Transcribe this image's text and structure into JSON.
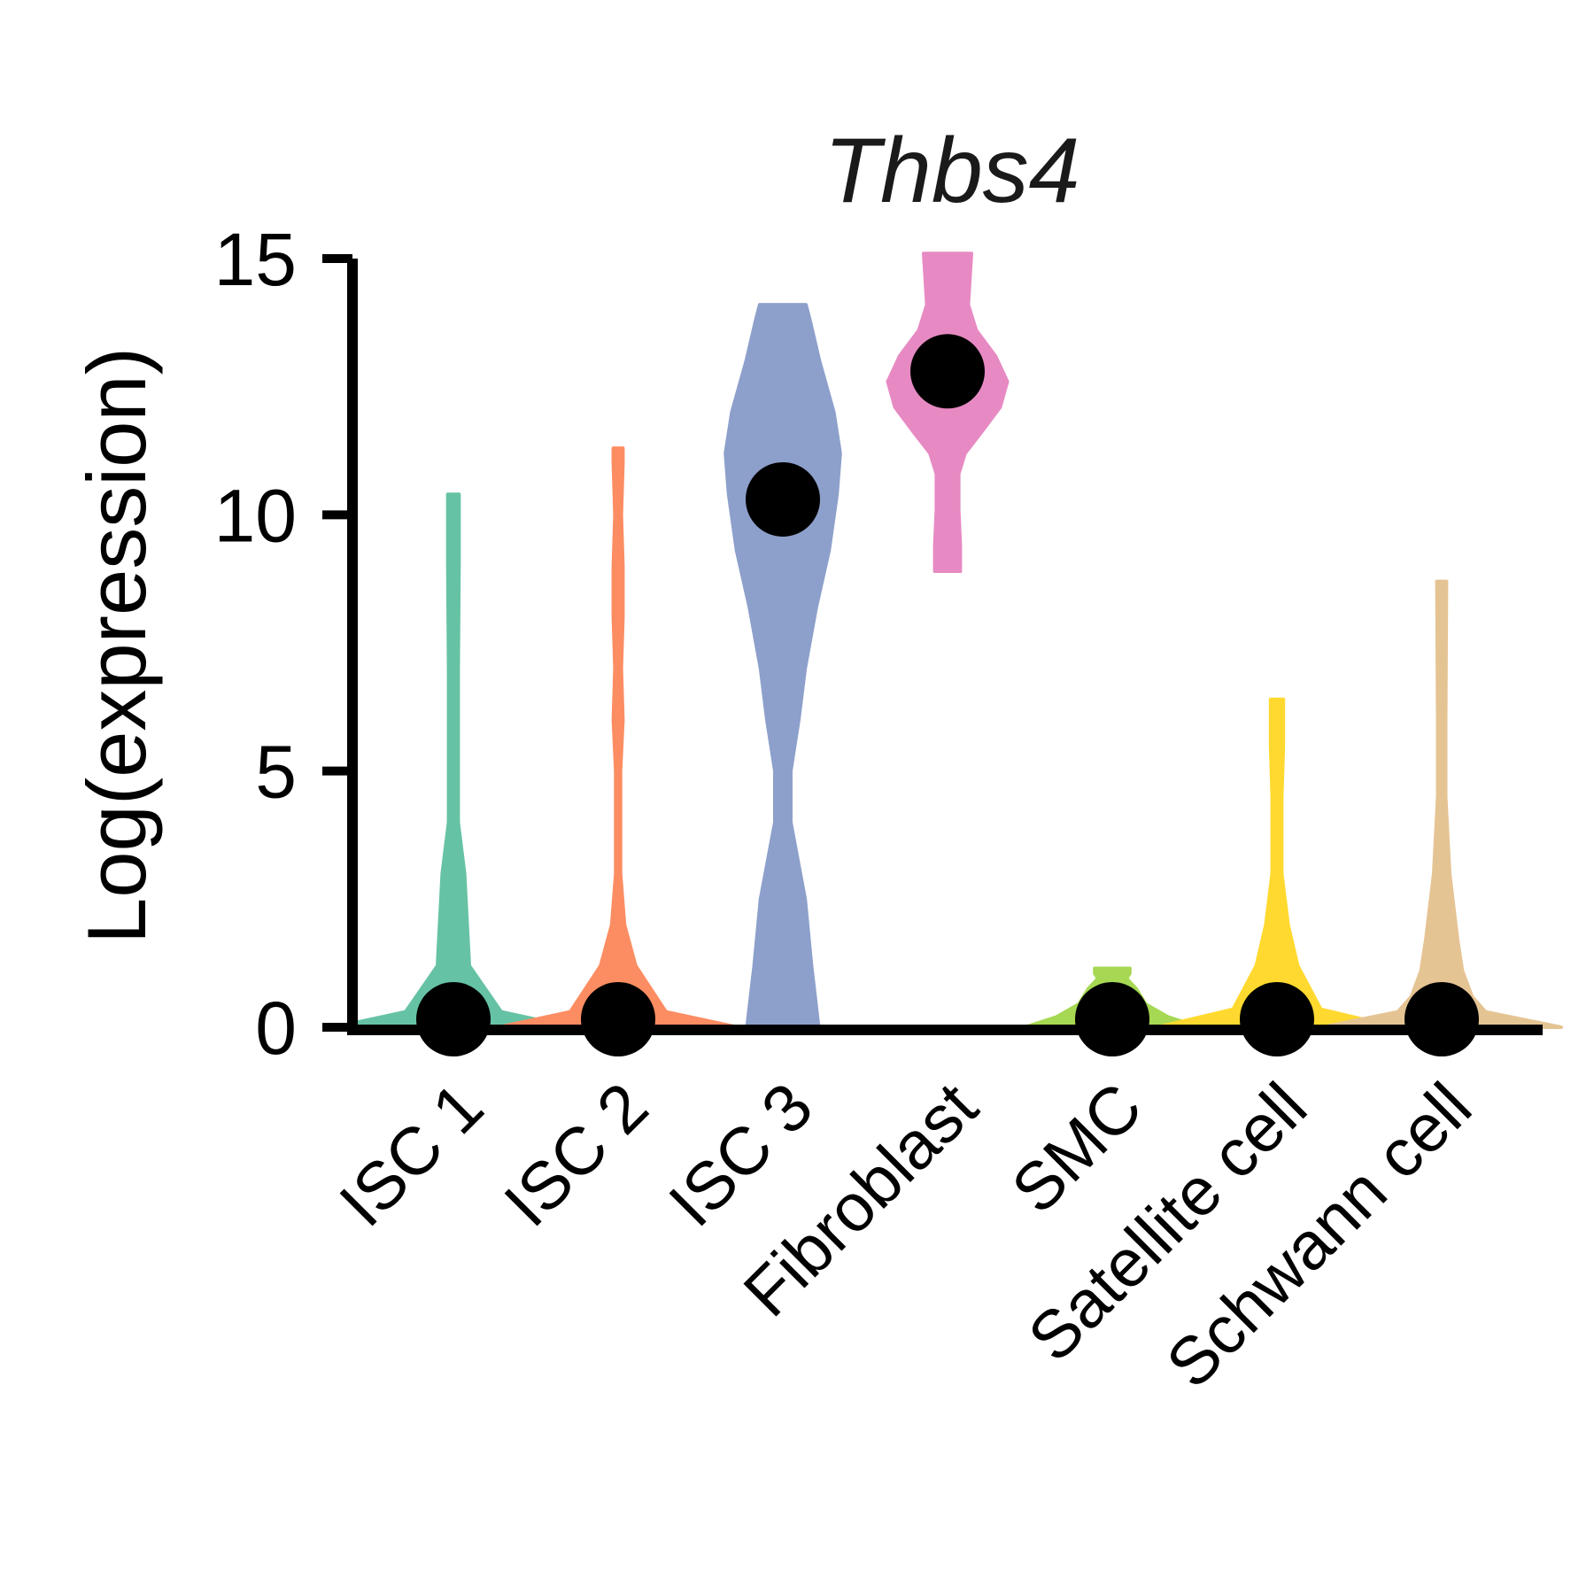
{
  "chart_data": {
    "type": "violin",
    "title": "Thbs4",
    "ylabel": "Log(expression)",
    "xlabel": "",
    "ylim": [
      0,
      15
    ],
    "yticks": [
      0,
      5,
      10,
      15
    ],
    "categories": [
      "ISC 1",
      "ISC 2",
      "ISC 3",
      "Fibroblast",
      "SMC",
      "Satellite cell",
      "Schwann cell"
    ],
    "colors": [
      "#66C2A5",
      "#FC8D62",
      "#8DA0CB",
      "#E78AC3",
      "#A6D854",
      "#FFD92F",
      "#E5C494"
    ],
    "medians": [
      0,
      0,
      10.3,
      12.8,
      0,
      0,
      0
    ],
    "violins": [
      {
        "name": "ISC 1",
        "profile": [
          [
            0,
            1.5
          ],
          [
            0.3,
            0.6
          ],
          [
            1.2,
            0.2
          ],
          [
            3,
            0.14
          ],
          [
            4,
            0.06
          ],
          [
            7,
            0.06
          ],
          [
            9,
            0.07
          ],
          [
            10.4,
            0.07
          ]
        ]
      },
      {
        "name": "ISC 2",
        "profile": [
          [
            0,
            1.5
          ],
          [
            0.3,
            0.6
          ],
          [
            1.2,
            0.22
          ],
          [
            2,
            0.08
          ],
          [
            3,
            0.03
          ],
          [
            5,
            0.03
          ],
          [
            6,
            0.06
          ],
          [
            7,
            0.04
          ],
          [
            8,
            0.06
          ],
          [
            9,
            0.06
          ],
          [
            10,
            0.04
          ],
          [
            11,
            0.06
          ],
          [
            11.3,
            0.06
          ]
        ]
      },
      {
        "name": "ISC 3",
        "profile": [
          [
            0,
            0.45
          ],
          [
            1.2,
            0.36
          ],
          [
            2.5,
            0.28
          ],
          [
            4,
            0.1
          ],
          [
            5,
            0.1
          ],
          [
            6,
            0.2
          ],
          [
            7,
            0.28
          ],
          [
            8.2,
            0.42
          ],
          [
            9.3,
            0.58
          ],
          [
            10.4,
            0.68
          ],
          [
            11.2,
            0.72
          ],
          [
            12,
            0.64
          ],
          [
            13,
            0.46
          ],
          [
            13.8,
            0.34
          ],
          [
            14.1,
            0.29
          ]
        ]
      },
      {
        "name": "Fibroblast",
        "profile": [
          [
            8.9,
            0.16
          ],
          [
            9.4,
            0.16
          ],
          [
            10.1,
            0.14
          ],
          [
            10.8,
            0.14
          ],
          [
            11.2,
            0.22
          ],
          [
            11.6,
            0.42
          ],
          [
            12.1,
            0.66
          ],
          [
            12.6,
            0.75
          ],
          [
            13.1,
            0.6
          ],
          [
            13.6,
            0.36
          ],
          [
            14.1,
            0.26
          ],
          [
            14.6,
            0.28
          ],
          [
            15.1,
            0.3
          ]
        ]
      },
      {
        "name": "SMC",
        "profile": [
          [
            0,
            1.1
          ],
          [
            0.2,
            0.7
          ],
          [
            0.45,
            0.42
          ],
          [
            0.75,
            0.3
          ],
          [
            0.95,
            0.18
          ],
          [
            1.05,
            0.22
          ],
          [
            1.15,
            0.22
          ]
        ]
      },
      {
        "name": "Satellite cell",
        "profile": [
          [
            0,
            1.5
          ],
          [
            0.35,
            0.55
          ],
          [
            1.2,
            0.26
          ],
          [
            2,
            0.14
          ],
          [
            3,
            0.06
          ],
          [
            4.5,
            0.06
          ],
          [
            5.5,
            0.08
          ],
          [
            6.4,
            0.08
          ]
        ]
      },
      {
        "name": "Schwann cell",
        "profile": [
          [
            0,
            1.5
          ],
          [
            0.3,
            0.55
          ],
          [
            0.6,
            0.38
          ],
          [
            1.1,
            0.26
          ],
          [
            1.7,
            0.2
          ],
          [
            3,
            0.1
          ],
          [
            4.5,
            0.05
          ],
          [
            6,
            0.05
          ],
          [
            8.7,
            0.06
          ]
        ]
      }
    ],
    "grid": false,
    "legend": "none"
  }
}
